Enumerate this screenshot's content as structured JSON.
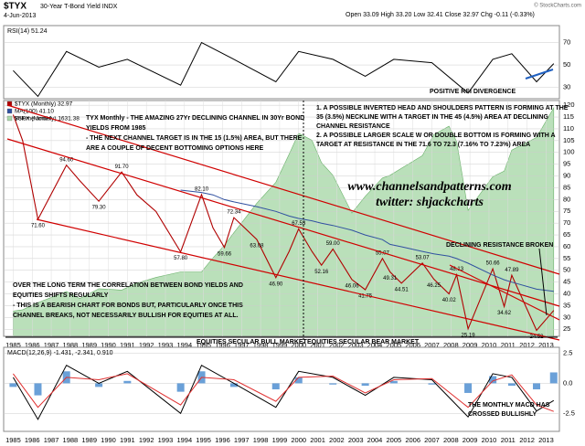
{
  "header": {
    "symbol": "$TYX",
    "name": "30-Year T-Bond Yield INDX",
    "date": "4-Jun-2013",
    "quote": "Open 33.09 High 33.20 Low 32.41 Close 32.97 Chg -0.11 (-0.33%)",
    "credit": "© StockCharts.com"
  },
  "chart_data": [
    {
      "type": "line",
      "title": "RSI(14) 51.24",
      "note": "POSITIVE RSI DIVERGENCE",
      "x": [
        1985,
        1986.3,
        1987.8,
        1989.5,
        1991,
        1993.8,
        1994.9,
        1996.6,
        1998.8,
        2000,
        2001.8,
        2003.5,
        2005,
        2007,
        2008.9,
        2010.2,
        2011.2,
        2012.5,
        2013.4
      ],
      "values": [
        45,
        22,
        62,
        48,
        55,
        32,
        70,
        55,
        35,
        62,
        55,
        40,
        55,
        52,
        25,
        55,
        60,
        35,
        51.24
      ],
      "color": "#000000",
      "xlim": [
        1984.5,
        2013.7
      ],
      "ylim": [
        20,
        85
      ],
      "yticks": [
        30,
        50,
        70
      ]
    },
    {
      "type": "price",
      "volume_label": "Volume undef",
      "x": [
        1985,
        1985.5,
        1986.3,
        1987.8,
        1988.5,
        1989.5,
        1990.7,
        1991.5,
        1992.5,
        1993.8,
        1994.9,
        1995.5,
        1996.1,
        1996.6,
        1997.8,
        1998.8,
        1999.5,
        2000,
        2000.7,
        2001.2,
        2001.8,
        2002.8,
        2003.5,
        2004.4,
        2004.8,
        2005.4,
        2006.5,
        2007.1,
        2007.9,
        2008.3,
        2008.9,
        2010.2,
        2010.8,
        2011.2,
        2012.5,
        2013.4
      ],
      "series": [
        {
          "name": "$TYX (Monthly) 32.97",
          "color": "#b00000",
          "values": [
            116,
            105,
            71.6,
            94.6,
            88,
            79.3,
            91.7,
            82,
            75,
            57.8,
            82.1,
            68,
            59.66,
            72.34,
            63.08,
            46.9,
            58,
            67.53,
            58,
            52.16,
            59,
            46.06,
            41.75,
            55.07,
            49.31,
            44.51,
            53.07,
            46.25,
            40.02,
            48.13,
            25.19,
            50.66,
            34.62,
            47.89,
            24.52,
            32.97
          ],
          "value_labels": [
            null,
            null,
            "71.60",
            "94.60",
            null,
            "79.30",
            "91.70",
            null,
            null,
            "57.80",
            "82.10",
            null,
            "59.66",
            "72.34",
            "63.08",
            "46.90",
            null,
            "67.53",
            null,
            "52.16",
            "59.00",
            "46.06",
            "41.75",
            "55.07",
            "49.31",
            "44.51",
            "53.07",
            "46.25",
            "40.02",
            "48.13",
            "25.19",
            "50.66",
            "34.62",
            "47.89",
            "24.52",
            null
          ]
        },
        {
          "name": "MA(100) 41.10",
          "color": "#3050a0",
          "values": [
            null,
            null,
            null,
            null,
            null,
            null,
            null,
            null,
            null,
            84,
            83,
            82,
            80,
            79,
            77,
            75,
            73,
            72,
            71,
            70,
            69,
            67,
            65,
            63,
            61,
            60,
            58,
            57,
            56,
            55,
            53,
            48,
            46,
            45,
            42,
            41.1
          ]
        },
        {
          "name": "$SPX (Monthly) 1631.38",
          "color": "#a9d8a9",
          "axis": "y3",
          "values": [
            180,
            190,
            240,
            320,
            270,
            340,
            330,
            380,
            420,
            460,
            460,
            560,
            650,
            740,
            950,
            1100,
            1300,
            1450,
            1400,
            1240,
            1150,
            880,
            1000,
            1130,
            1150,
            1200,
            1290,
            1440,
            1500,
            1390,
            900,
            1140,
            1180,
            1330,
            1420,
            1631.38
          ]
        }
      ],
      "xlim": [
        1984.5,
        2013.7
      ],
      "xticks": [
        1985,
        1986,
        1987,
        1988,
        1989,
        1990,
        1991,
        1992,
        1993,
        1994,
        1995,
        1996,
        1997,
        1998,
        1999,
        2000,
        2001,
        2002,
        2003,
        2004,
        2005,
        2006,
        2007,
        2008,
        2009,
        2010,
        2011,
        2012,
        2013
      ],
      "ylim": [
        22,
        122
      ],
      "yticks": [
        25,
        30,
        35,
        40,
        45,
        50,
        55,
        60,
        65,
        70,
        75,
        80,
        85,
        90,
        95,
        100,
        105,
        110,
        115,
        120
      ]
    },
    {
      "type": "macd",
      "title": "MACD(12,26,9) -1.431, -2.341, 0.910",
      "note": [
        "THE MONTHLY MACD HAS",
        "CROSSED BULLISHLY"
      ],
      "x": [
        1985,
        1986.3,
        1987.8,
        1989.5,
        1991,
        1993.8,
        1994.9,
        1996.6,
        1998.8,
        2000,
        2001.8,
        2003.5,
        2005,
        2007,
        2008.9,
        2010.2,
        2011.2,
        2012.5,
        2013.4
      ],
      "series": [
        {
          "name": "MACD",
          "color": "#000000",
          "values": [
            0.5,
            -3,
            1.5,
            0,
            1,
            -2.5,
            1.5,
            0,
            -2,
            1,
            0.5,
            -1,
            0.5,
            0.3,
            -2.8,
            0.8,
            0.5,
            -2.3,
            -1.431
          ]
        },
        {
          "name": "Signal",
          "color": "#e03030",
          "values": [
            0.8,
            -2,
            0.5,
            0.3,
            0.8,
            -1.8,
            0.5,
            0.3,
            -1.5,
            0.5,
            0.6,
            -0.8,
            0.3,
            0.4,
            -2,
            0.2,
            0.7,
            -1.8,
            -2.341
          ]
        },
        {
          "name": "Histogram",
          "color": "#6aa0d8",
          "values": [
            -0.3,
            -1,
            1,
            -0.3,
            0.2,
            -0.7,
            1,
            -0.3,
            -0.5,
            0.5,
            -0.1,
            -0.2,
            0.2,
            -0.1,
            -0.8,
            0.6,
            -0.2,
            -0.5,
            0.91
          ]
        }
      ],
      "xlim": [
        1984.5,
        2013.7
      ],
      "ylim": [
        -4,
        3
      ],
      "yticks": [
        {
          "value": 2.5,
          "label": "2.5"
        },
        {
          "value": 0,
          "label": "0.0"
        },
        {
          "value": -2.5,
          "label": "-2.5"
        }
      ]
    }
  ],
  "annotations": {
    "channel": [
      "TYX Monthly - THE AMAZING 27Yr DECLINING CHANNEL IN 30Yr BOND",
      "YIELDS FROM 1985",
      "- THE NEXT CHANNEL TARGET IS IN THE 15 (1.5%) AREA, BUT THERE",
      "ARE A COUPLE OF DECENT BOTTOMING OPTIONS HERE"
    ],
    "patterns": [
      "1.  A POSSIBLE INVERTED HEAD AND SHOULDERS PATTERN IS FORMING AT THE",
      "35 (3.5%) NECKLINE WITH A TARGET IN THE 45 (4.5%) AREA AT DECLINING",
      "CHANNEL RESISTANCE",
      "2.  A POSSIBLE LARGER SCALE W OR DOUBLE BOTTOM IS FORMING WITH A",
      "TARGET AT RESISTANCE IN THE 71.6 TO 72.3 (7.16% TO 7.23%) AREA"
    ],
    "website": "www.channelsandpatterns.com",
    "twitter": "twitter: shjackcharts",
    "resistance": "DECLINING RESISTANCE BROKEN",
    "correlation": [
      "OVER THE LONG TERM THE CORRELATION BETWEEN BOND YIELDS AND",
      "EQUITIES SHIFTS REGULARLY",
      "- THIS IS A BEARISH CHART FOR BONDS BUT, PARTICULARLY ONCE THIS",
      "CHANNEL BREAKS, NOT NECESSARILY BULLISH FOR EQUITIES AT ALL."
    ],
    "bull": "EQUITIES SECULAR BULL MARKET",
    "bear": "EQUITIES SECULAR BEAR MARKET"
  }
}
